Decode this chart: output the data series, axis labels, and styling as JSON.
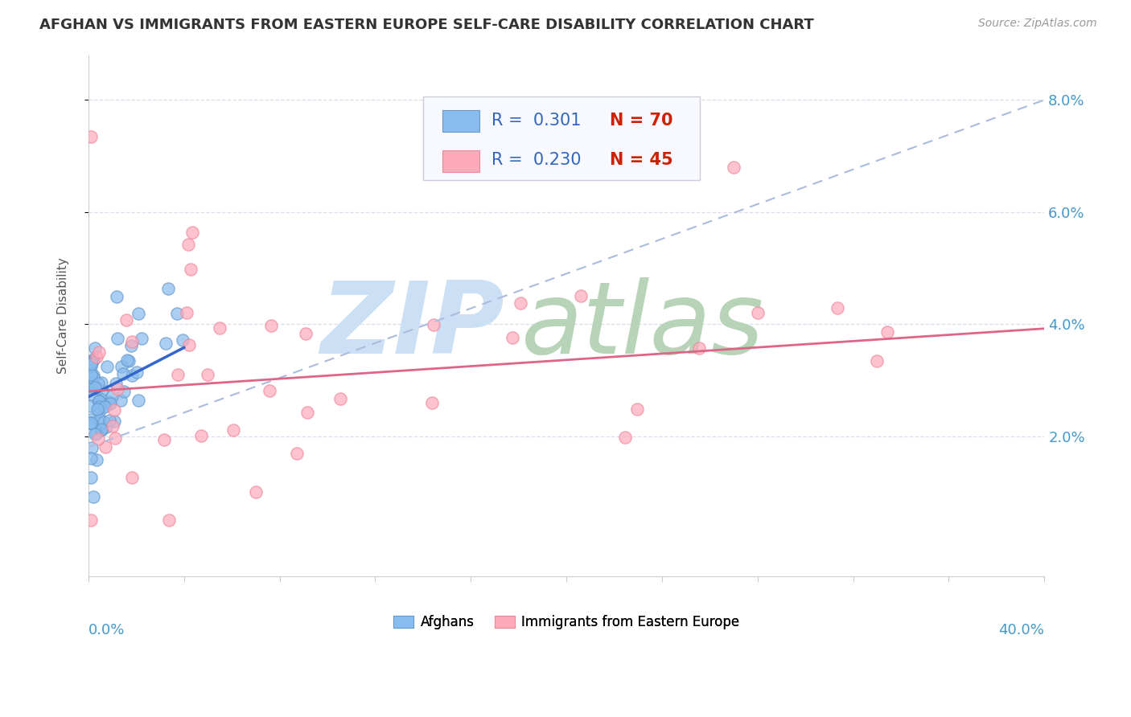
{
  "title": "AFGHAN VS IMMIGRANTS FROM EASTERN EUROPE SELF-CARE DISABILITY CORRELATION CHART",
  "source": "Source: ZipAtlas.com",
  "ylabel": "Self-Care Disability",
  "ylim": [
    -0.005,
    0.088
  ],
  "xlim": [
    0.0,
    0.4
  ],
  "ytick_vals": [
    0.02,
    0.04,
    0.06,
    0.08
  ],
  "ytick_labels": [
    "2.0%",
    "4.0%",
    "6.0%",
    "8.0%"
  ],
  "R_afghan": 0.301,
  "N_afghan": 70,
  "R_eastern": 0.23,
  "N_eastern": 45,
  "afghan_dot_color": "#88bbee",
  "afghan_dot_edge": "#6699cc",
  "eastern_dot_color": "#ffaabb",
  "eastern_dot_edge": "#ee8899",
  "afghan_line_color": "#3366cc",
  "eastern_line_color": "#aabbdd",
  "watermark_zip_color": "#ddeeff",
  "watermark_atlas_color": "#bbddcc",
  "legend_R_color": "#3366bb",
  "legend_N_color": "#3366bb",
  "legend_box_color": "#f8f8ff",
  "legend_box_edge": "#ccccdd",
  "background_color": "#ffffff",
  "grid_color": "#ddddee",
  "title_color": "#333333",
  "source_color": "#999999",
  "ylabel_color": "#555555",
  "yaxis_label_color": "#4499cc",
  "xaxis_label_color": "#4499cc"
}
